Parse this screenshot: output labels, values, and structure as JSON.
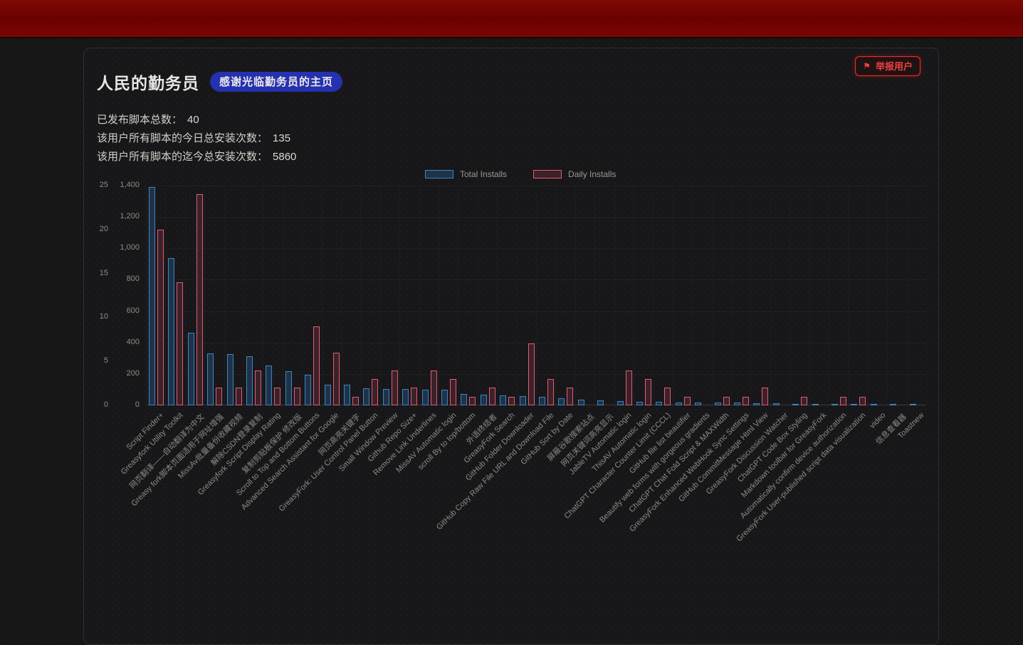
{
  "panel": {
    "title": "人民的勤务员",
    "badge": "感谢光临勤务员的主页",
    "report_button": {
      "icon": "flag-icon",
      "glyph": "⚑",
      "label": "举报用户"
    },
    "stats": [
      {
        "label": "已发布脚本总数：",
        "value": "40"
      },
      {
        "label": "该用户所有脚本的今日总安装次数：",
        "value": "135"
      },
      {
        "label": "该用户所有脚本的迄今总安装次数：",
        "value": "5860"
      }
    ]
  },
  "chart_data": {
    "type": "bar",
    "title": "",
    "legend_position": "top-center",
    "grid": true,
    "legend": [
      {
        "name": "Total Installs",
        "border_color": "#3e84c1",
        "fill_color": "#1e3349"
      },
      {
        "name": "Daily Installs",
        "border_color": "#dc5e76",
        "fill_color": "#3c2129"
      }
    ],
    "categories": [
      "Script Finder+",
      "Greasyfork Utility Toolkit",
      "网页翻译——自动翻译为中文",
      "Greasy fork脚本页面适用于网址增强",
      "MissAv批量备份收藏视频",
      "解除CSDN登录复制",
      "Greasyfork Script Display Rating",
      "复制剪贴板保护 修改版",
      "Scroll to Top and Bottom Buttons",
      "Advanced Search Assistant for Google",
      "网页高亮关键字",
      "GreasyFork: User Control Panel Button",
      "Small Window Preview",
      "Github Repo Size+",
      "Remove Link Underlines",
      "MissAV Automatic login",
      "scroll By to top/bottom",
      "外语终结者",
      "GreasyFork Search",
      "GitHub Folder Downloader",
      "GitHub Copy Raw File URL and Download File",
      "GitHub Sort by Date",
      "屏蔽谷歌搜索站点",
      "网页关键词高亮显示",
      "JableTV Automatic login",
      "ThisAV Automatic login",
      "ChatGPT Character Counter Limit (CCCL)",
      "GitHub file list beautifier",
      "Beautify web forms with gorgeous gradients",
      "ChatGPT Chat Fold Script & MAXWidth",
      "GreasyFork Enhanced WebHook Sync Settings",
      "GitHub CommitMessage Html View",
      "GreasyFork Discussion Watcher",
      "ChatGPT Code Box Styling",
      "Markdown toolbar for GreasyFork",
      "Automatically confirm device authorization",
      "GreasyFork User-published script data visualization",
      "video",
      "信息查看器",
      "Toastnew"
    ],
    "series": [
      {
        "name": "Total Installs",
        "axis": "inner",
        "values": [
          1390,
          940,
          461,
          332,
          326,
          312,
          252,
          216,
          195,
          132,
          130,
          107,
          106,
          105,
          101,
          100,
          72,
          70,
          62,
          57,
          55,
          46,
          38,
          33,
          28,
          24,
          22,
          20,
          19,
          18,
          17,
          15,
          13,
          11,
          9,
          8,
          6,
          5,
          4,
          3
        ]
      },
      {
        "name": "Daily Installs",
        "axis": "outer",
        "values": [
          20,
          14,
          24,
          2,
          2,
          4,
          2,
          2,
          9,
          6,
          1,
          3,
          4,
          2,
          4,
          3,
          1,
          2,
          1,
          7,
          3,
          2,
          0,
          0,
          4,
          3,
          2,
          1,
          0,
          1,
          1,
          2,
          0,
          1,
          0,
          1,
          1,
          0,
          0,
          0
        ]
      }
    ],
    "axes": {
      "outer": {
        "max": 25,
        "ticks": [
          {
            "label": "0",
            "v": 0
          },
          {
            "label": "5",
            "v": 5
          },
          {
            "label": "10",
            "v": 10
          },
          {
            "label": "15",
            "v": 15
          },
          {
            "label": "20",
            "v": 20
          },
          {
            "label": "25",
            "v": 25
          }
        ]
      },
      "inner": {
        "max": 1400,
        "ticks": [
          {
            "label": "0",
            "v": 0
          },
          {
            "label": "200",
            "v": 200
          },
          {
            "label": "400",
            "v": 400
          },
          {
            "label": "600",
            "v": 600
          },
          {
            "label": "800",
            "v": 800
          },
          {
            "label": "1,000",
            "v": 1000
          },
          {
            "label": "1,200",
            "v": 1200
          },
          {
            "label": "1,400",
            "v": 1400
          }
        ]
      }
    }
  },
  "colors": {
    "banner_red": "#750303",
    "badge_blue": "#2531b0",
    "report_red": "#ee3030",
    "total_border": "#3e84c1",
    "daily_border": "#dc5e76"
  }
}
